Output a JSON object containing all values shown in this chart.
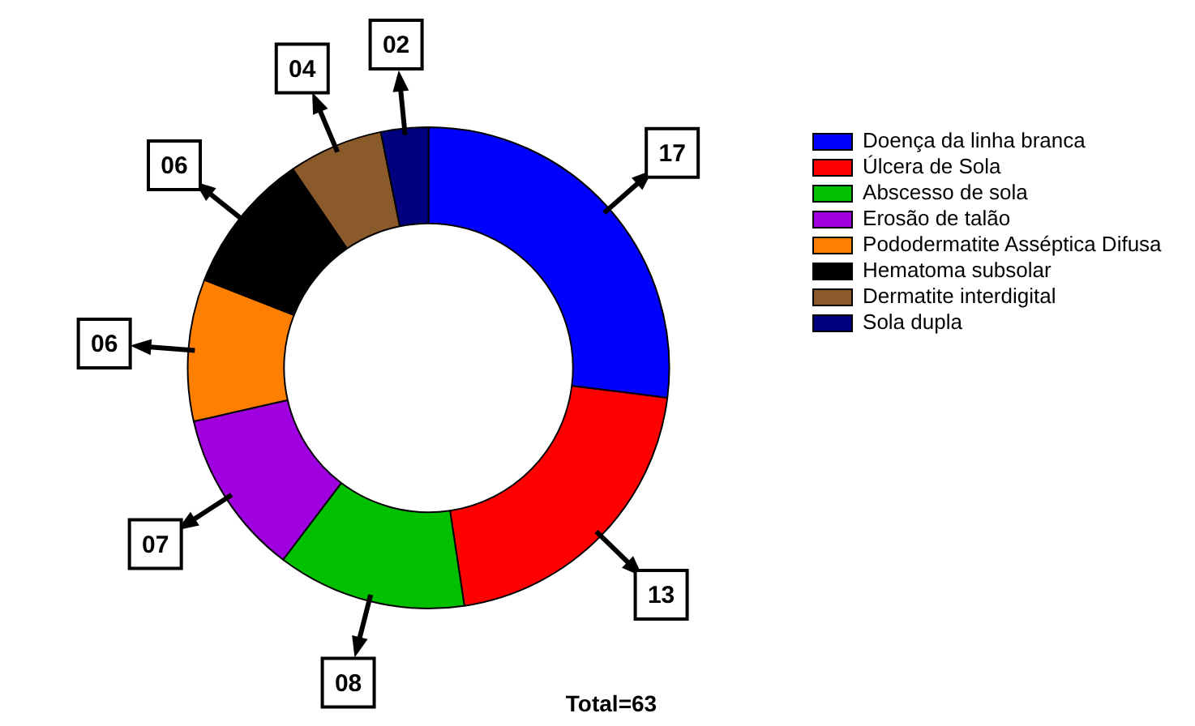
{
  "chart_data": {
    "type": "donut",
    "categories": [
      "Doença da linha branca",
      "Úlcera de Sola",
      "Abscesso de sola",
      "Erosão de talão",
      "Pododermatite Asséptica Difusa",
      "Hematoma subsolar",
      "Dermatite interdigital",
      "Sola dupla"
    ],
    "values": [
      17,
      13,
      8,
      7,
      6,
      6,
      4,
      2
    ],
    "value_labels": [
      "17",
      "13",
      "08",
      "07",
      "06",
      "06",
      "04",
      "02"
    ],
    "colors": [
      "#0000ff",
      "#ff0000",
      "#00c000",
      "#a000e0",
      "#ff8000",
      "#000000",
      "#8b5a2b",
      "#000080"
    ],
    "legend": "right",
    "annotations": [
      "Total=63"
    ]
  }
}
